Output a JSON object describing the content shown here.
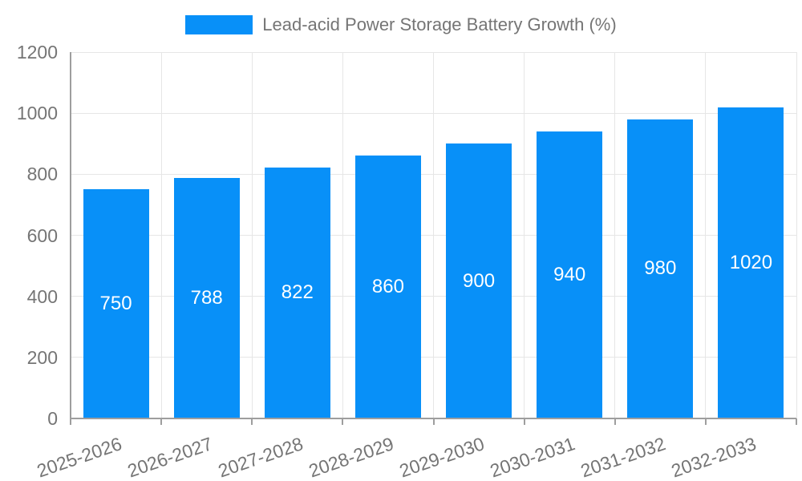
{
  "legend": {
    "label": "Lead-acid Power Storage Battery Growth (%)"
  },
  "colors": {
    "bar": "#0890f8",
    "bar_label": "#ffffff",
    "axis_text": "#757575",
    "gridline": "#e6e6e6",
    "axis_line": "#9e9e9e"
  },
  "chart_data": {
    "type": "bar",
    "title": "Lead-acid Power Storage Battery Growth (%)",
    "categories": [
      "2025-2026",
      "2026-2027",
      "2027-2028",
      "2028-2029",
      "2029-2030",
      "2030-2031",
      "2031-2032",
      "2032-2033"
    ],
    "values": [
      750,
      788,
      822,
      860,
      900,
      940,
      980,
      1020
    ],
    "xlabel": "",
    "ylabel": "",
    "ylim": [
      0,
      1200
    ],
    "yticks": [
      0,
      200,
      400,
      600,
      800,
      1000,
      1200
    ],
    "grid": true,
    "bar_labels_visible": true,
    "legend_position": "top-center"
  }
}
